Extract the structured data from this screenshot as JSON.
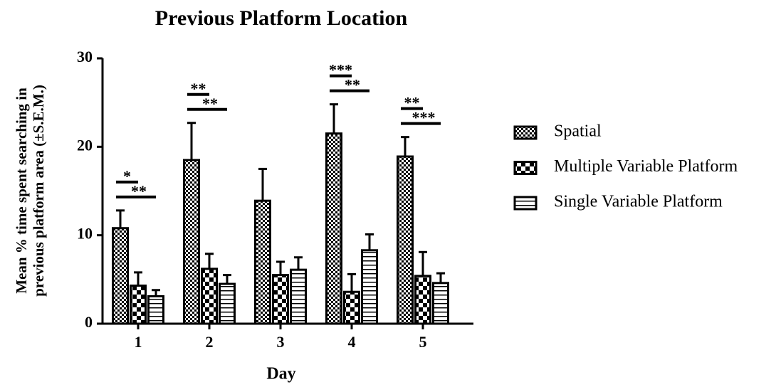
{
  "chart_data": {
    "type": "bar",
    "title": "Previous Platform Location",
    "x_label": "Day",
    "y_label": [
      "Mean % time spent searching in",
      "previous platform area (±S.E.M.)"
    ],
    "categories": [
      "1",
      "2",
      "3",
      "4",
      "5"
    ],
    "series": [
      {
        "name": "Spatial",
        "color": "#000000",
        "pattern": "checker-small",
        "values": [
          10.8,
          18.5,
          13.9,
          21.5,
          18.9
        ],
        "errors": [
          2.0,
          4.2,
          3.6,
          3.3,
          2.2
        ]
      },
      {
        "name": "Multiple Variable Platform",
        "color": "#000000",
        "pattern": "checker-large",
        "values": [
          4.3,
          6.2,
          5.5,
          3.6,
          5.4
        ],
        "errors": [
          1.5,
          1.7,
          1.5,
          2.0,
          2.7
        ]
      },
      {
        "name": "Single Variable Platform",
        "color": "#000000",
        "pattern": "horizontal-lines",
        "values": [
          3.1,
          4.5,
          6.1,
          8.3,
          4.6
        ],
        "errors": [
          0.7,
          1.0,
          1.4,
          1.8,
          1.1
        ]
      }
    ],
    "annotations": [
      {
        "category": 0,
        "text": "*"
      },
      {
        "category": 0,
        "text": "**"
      },
      {
        "category": 1,
        "text": "**"
      },
      {
        "category": 1,
        "text": "**"
      },
      {
        "category": 3,
        "text": "***"
      },
      {
        "category": 3,
        "text": "**"
      },
      {
        "category": 4,
        "text": "**"
      },
      {
        "category": 4,
        "text": "***"
      }
    ],
    "ylim": [
      0,
      30
    ],
    "yticks": [
      0,
      10,
      20,
      30
    ],
    "legend": "right"
  }
}
